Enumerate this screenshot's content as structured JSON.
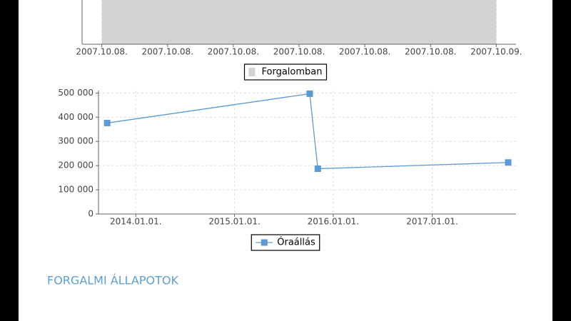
{
  "chart_data": [
    {
      "type": "area",
      "x": [
        0,
        24
      ],
      "series": [
        {
          "name": "Forgalomban",
          "color": "#d3d3d3",
          "values": [
            1,
            1
          ]
        }
      ],
      "xlim": [
        -1.2,
        25.2
      ],
      "xticks": [
        {
          "value": 0,
          "label": "2007.10.08."
        },
        {
          "value": 4,
          "label": "2007.10.08."
        },
        {
          "value": 8,
          "label": "2007.10.08."
        },
        {
          "value": 12,
          "label": "2007.10.08."
        },
        {
          "value": 16,
          "label": "2007.10.08."
        },
        {
          "value": 20,
          "label": "2007.10.08."
        },
        {
          "value": 24,
          "label": "2007.10.09."
        }
      ],
      "ylim": [
        0,
        1
      ],
      "grid": true
    },
    {
      "type": "line",
      "x": [
        "2013-09-17",
        "2015-10-06",
        "2015-11-05",
        "2017-10-09"
      ],
      "series": [
        {
          "name": "Óraállás",
          "color": "#5b9bd5",
          "values": [
            376000,
            497000,
            187000,
            213000
          ]
        }
      ],
      "xlim": [
        "2013-08-16",
        "2017-11-07"
      ],
      "xticks": [
        {
          "value": "2014-01-01",
          "label": "2014.01.01."
        },
        {
          "value": "2015-01-01",
          "label": "2015.01.01."
        },
        {
          "value": "2016-01-01",
          "label": "2016.01.01."
        },
        {
          "value": "2017-01-01",
          "label": "2017.01.01."
        }
      ],
      "ylim": [
        0,
        510000
      ],
      "yticks": [
        0,
        {
          "value": 100000,
          "label": "100 000"
        },
        {
          "value": 200000,
          "label": "200 000"
        },
        {
          "value": 300000,
          "label": "300 000"
        },
        {
          "value": 400000,
          "label": "400 000"
        },
        {
          "value": 500000,
          "label": "500 000"
        }
      ],
      "grid": true
    }
  ],
  "section_heading": "FORGALMI ÁLLAPOTOK"
}
